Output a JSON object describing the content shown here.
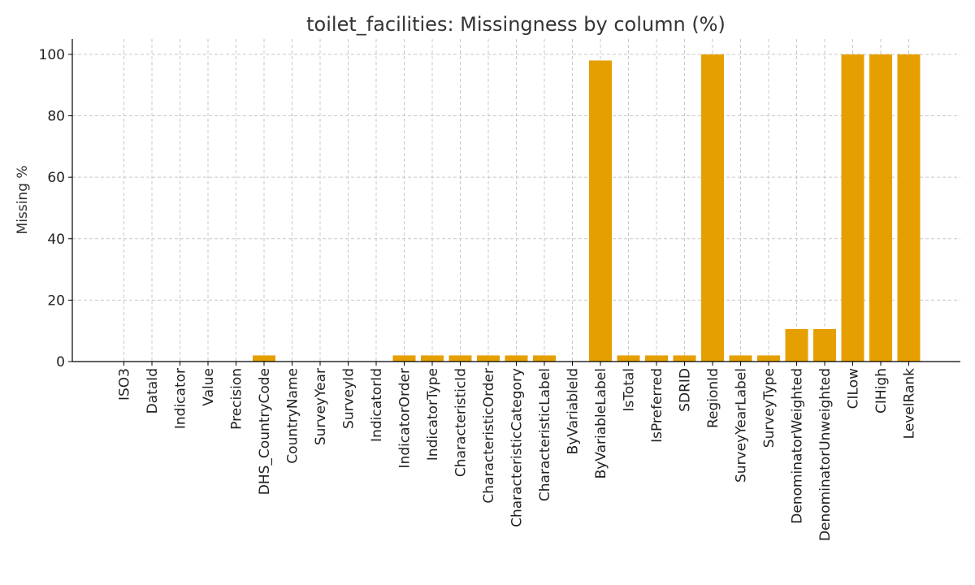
{
  "chart_data": {
    "type": "bar",
    "title": "toilet_facilities: Missingness by column (%)",
    "xlabel": "",
    "ylabel": "Missing %",
    "ylim": [
      0,
      105
    ],
    "yticks": [
      0,
      20,
      40,
      60,
      80,
      100
    ],
    "grid": true,
    "bar_color": "#E69F00",
    "categories": [
      "ISO3",
      "DataId",
      "Indicator",
      "Value",
      "Precision",
      "DHS_CountryCode",
      "CountryName",
      "SurveyYear",
      "SurveyId",
      "IndicatorId",
      "IndicatorOrder",
      "IndicatorType",
      "CharacteristicId",
      "CharacteristicOrder",
      "CharacteristicCategory",
      "CharacteristicLabel",
      "ByVariableId",
      "ByVariableLabel",
      "IsTotal",
      "IsPreferred",
      "SDRID",
      "RegionId",
      "SurveyYearLabel",
      "SurveyType",
      "DenominatorWeighted",
      "DenominatorUnweighted",
      "CILow",
      "CIHigh",
      "LevelRank"
    ],
    "values": [
      0,
      0,
      0,
      0,
      0,
      2,
      0,
      0,
      0,
      0,
      2,
      2,
      2,
      2,
      2,
      2,
      0,
      98,
      2,
      2,
      2,
      100,
      2,
      2,
      10.6,
      10.6,
      100,
      100,
      100
    ]
  }
}
